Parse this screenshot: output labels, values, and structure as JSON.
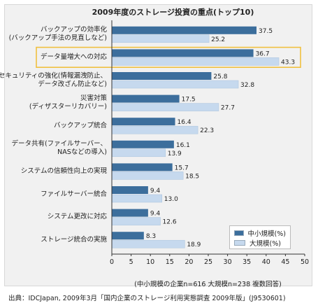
{
  "chart_data": {
    "type": "bar",
    "orientation": "horizontal",
    "title": "2009年度のストレージ投資の重点(トップ10)",
    "categories": [
      "バックアップの効率化\n(バックアップ手法の見直しなど)",
      "データ量増大への対応",
      "セキュリティの強化(情報漏洩防止、\nデータ改ざん防止など)",
      "災害対策\n(ディザスターリカバリー)",
      "バックアップ統合",
      "データ共有(ファイルサーバー、\nNASなどの導入)",
      "システムの信頼性向上の実現",
      "ファイルサーバー統合",
      "システム更改に対応",
      "ストレージ統合の実施"
    ],
    "series": [
      {
        "name": "中小規模(%)",
        "values": [
          37.5,
          36.7,
          25.8,
          17.5,
          16.4,
          16.1,
          15.7,
          9.4,
          9.4,
          8.3
        ],
        "color": "#3c6e9c"
      },
      {
        "name": "大規模(%)",
        "values": [
          25.2,
          43.3,
          32.8,
          27.7,
          22.3,
          13.9,
          18.5,
          13.0,
          12.6,
          18.9
        ],
        "color": "#c6d9ee"
      }
    ],
    "value_labels": [
      [
        "37.5",
        "36.7",
        "25.8",
        "17.5",
        "16.4",
        "16.1",
        "15.7",
        "9.4",
        "9.4",
        "8.3"
      ],
      [
        "25.2",
        "43.3",
        "32.8",
        "27.7",
        "22.3",
        "13.9",
        "18.5",
        "13.0",
        "12.6",
        "18.9"
      ]
    ],
    "xlim": [
      0,
      50
    ],
    "xticks": [
      "0",
      "5",
      "10",
      "15",
      "20",
      "25",
      "30",
      "35",
      "40",
      "45",
      "50"
    ],
    "highlighted_category_index": 1,
    "highlight_color": "#f0c040",
    "legend_position": "bottom-right",
    "grid": false
  },
  "note": "(中小規模の企業n=616 大規模n=238 複数回答)",
  "source": "出典：IDCJapan, 2009年3月「国内企業のストレージ利用実態調査 2009年版」(J9530601)"
}
